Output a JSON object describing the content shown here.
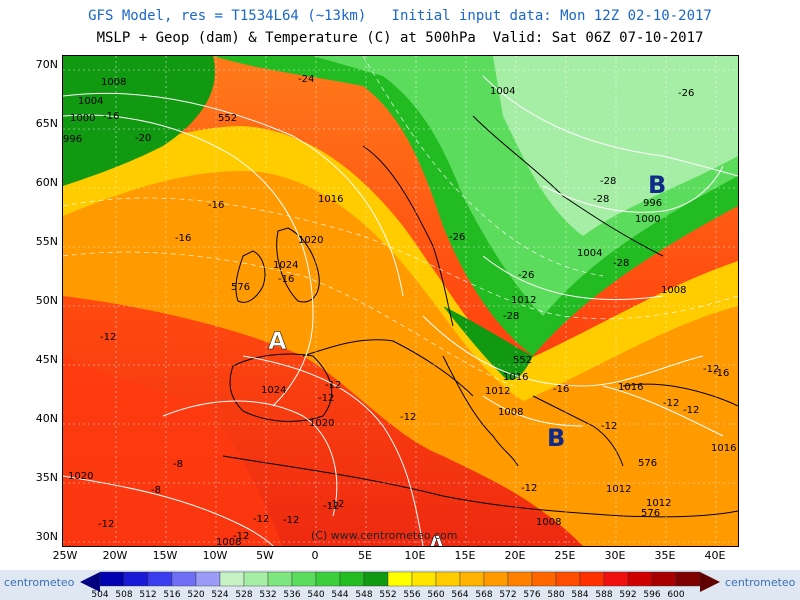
{
  "header": {
    "line1": "GFS Model, res = T1534L64 (~13km)   Initial input data: Mon 12Z 02-10-2017",
    "line2": "MSLP + Geop (dam) & Temperature (C) at 500hPa  Valid: Sat 06Z 07-10-2017"
  },
  "axes": {
    "lat_labels": [
      "70N",
      "65N",
      "60N",
      "55N",
      "50N",
      "45N",
      "40N",
      "35N",
      "30N"
    ],
    "lon_labels": [
      "25W",
      "20W",
      "15W",
      "10W",
      "5W",
      "0",
      "5E",
      "10E",
      "15E",
      "20E",
      "25E",
      "30E",
      "35E",
      "40E"
    ]
  },
  "pressure_labels": [
    {
      "text": "1008"
    },
    {
      "text": "1004"
    },
    {
      "text": "1000"
    },
    {
      "text": "996"
    },
    {
      "text": "1016"
    },
    {
      "text": "1020"
    },
    {
      "text": "1024"
    },
    {
      "text": "1004"
    },
    {
      "text": "1012"
    },
    {
      "text": "1016"
    },
    {
      "text": "1012"
    },
    {
      "text": "1008"
    },
    {
      "text": "1024"
    },
    {
      "text": "1020"
    },
    {
      "text": "1008"
    },
    {
      "text": "996"
    },
    {
      "text": "1000"
    },
    {
      "text": "1004"
    },
    {
      "text": "1008"
    },
    {
      "text": "1016"
    },
    {
      "text": "1012"
    },
    {
      "text": "1012"
    },
    {
      "text": "1008"
    },
    {
      "text": "1016"
    },
    {
      "text": "1020"
    }
  ],
  "geop_labels": [
    "552",
    "576",
    "552",
    "576",
    "576"
  ],
  "temp_labels": [
    "-24",
    "-16",
    "-20",
    "-16",
    "-16",
    "-16",
    "-12",
    "-12",
    "-12",
    "-8",
    "-8",
    "-12",
    "-12",
    "-12",
    "-12",
    "-12",
    "-16",
    "-26",
    "-26",
    "-28",
    "-28",
    "-28",
    "-26",
    "-28",
    "-12",
    "-12",
    "-12",
    "-12",
    "-16",
    "-12",
    "-12",
    "-12"
  ],
  "centers": [
    {
      "type": "high",
      "letter": "A"
    },
    {
      "type": "low",
      "letter": "B"
    },
    {
      "type": "low",
      "letter": "B"
    },
    {
      "type": "high",
      "letter": "A"
    }
  ],
  "credit": "(C) www.centrometeo.com",
  "colorbar": {
    "values": [
      "504",
      "508",
      "512",
      "516",
      "520",
      "524",
      "528",
      "532",
      "536",
      "540",
      "544",
      "548",
      "552",
      "556",
      "560",
      "564",
      "568",
      "572",
      "576",
      "580",
      "584",
      "588",
      "592",
      "596",
      "600"
    ],
    "colors": [
      "#0000b0",
      "#1a1ad6",
      "#3c3cf0",
      "#6f6ff5",
      "#9c9cf7",
      "#c6f2c6",
      "#a6eea6",
      "#7fe67f",
      "#5cdc5c",
      "#3ccf3c",
      "#22bb22",
      "#119911",
      "#ffff00",
      "#ffe600",
      "#ffcc00",
      "#ffb300",
      "#ff9a00",
      "#ff8000",
      "#ff6600",
      "#ff4d00",
      "#ff3000",
      "#f01010",
      "#d00000",
      "#a80000",
      "#800000"
    ]
  },
  "logo": "centrometeo"
}
